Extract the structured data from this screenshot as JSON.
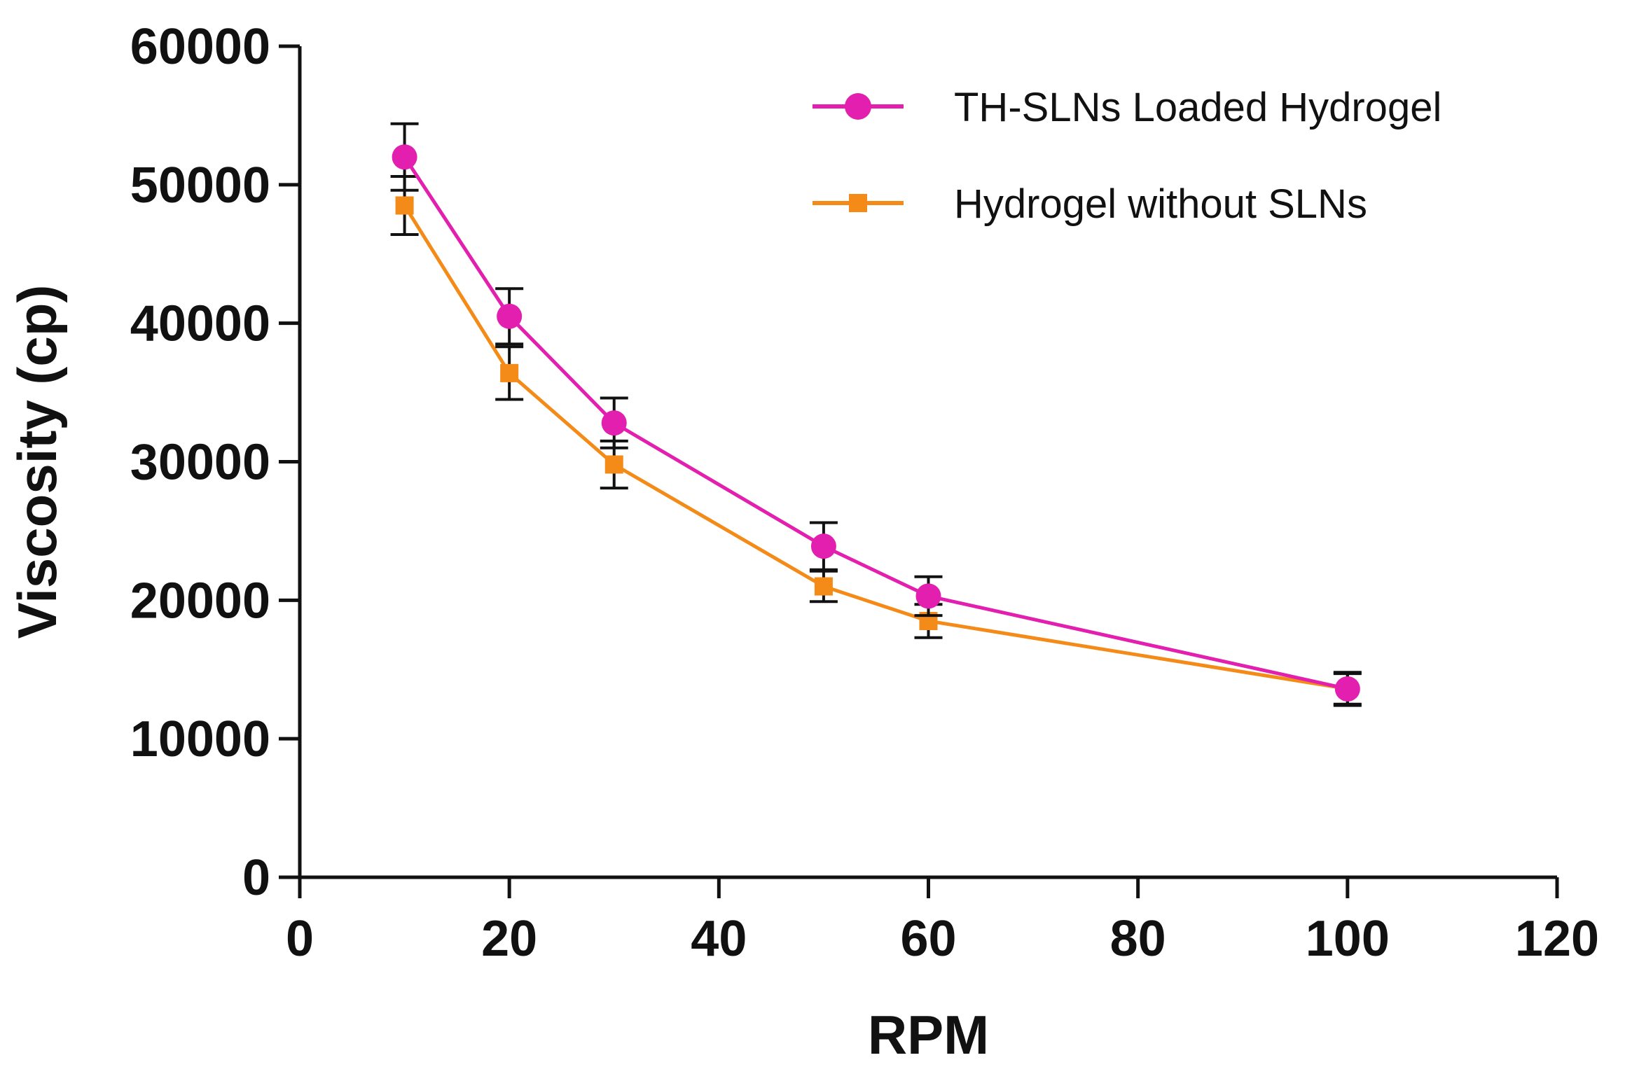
{
  "chart_data": {
    "type": "line",
    "title": "",
    "xlabel": "RPM",
    "ylabel": "Viscosity (cp)",
    "xlim": [
      0,
      120
    ],
    "ylim": [
      0,
      60000
    ],
    "x_ticks": [
      0,
      20,
      40,
      60,
      80,
      100,
      120
    ],
    "y_ticks": [
      0,
      10000,
      20000,
      30000,
      40000,
      50000,
      60000
    ],
    "x_tick_labels": [
      "0",
      "20",
      "40",
      "60",
      "80",
      "100",
      "120"
    ],
    "y_tick_labels": [
      "0",
      "10000",
      "20000",
      "30000",
      "40000",
      "50000",
      "60000"
    ],
    "grid": false,
    "legend_position": "top-right",
    "x": [
      10,
      20,
      30,
      50,
      60,
      100
    ],
    "series": [
      {
        "name": "TH-SLNs Loaded Hydrogel",
        "color": "#e21fae",
        "marker": "circle",
        "values": [
          52000,
          40500,
          32800,
          23900,
          20300,
          13600
        ],
        "errors": [
          2400,
          2000,
          1800,
          1700,
          1400,
          1200
        ]
      },
      {
        "name": "Hydrogel without SLNs",
        "color": "#f48a17",
        "marker": "square",
        "values": [
          48500,
          36400,
          29800,
          21000,
          18500,
          13600
        ],
        "errors": [
          2100,
          1900,
          1700,
          1100,
          1200,
          1100
        ]
      }
    ]
  }
}
